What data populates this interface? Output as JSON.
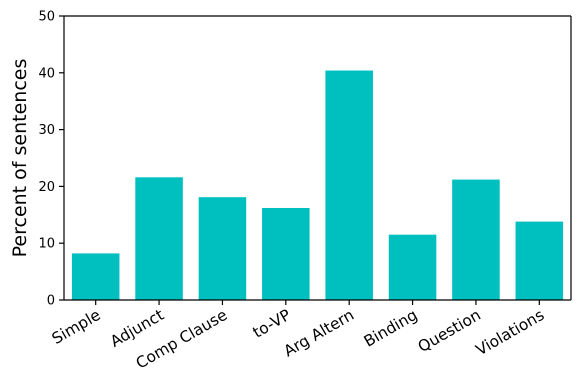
{
  "chart_data": {
    "type": "bar",
    "title": "",
    "xlabel": "",
    "ylabel": "Percent of sentences",
    "ylim": [
      0,
      50
    ],
    "yticks": [
      0,
      10,
      20,
      30,
      40,
      50
    ],
    "grid": false,
    "categories": [
      "Simple",
      "Adjunct",
      "Comp Clause",
      "to-VP",
      "Arg Altern",
      "Binding",
      "Question",
      "Violations"
    ],
    "values": [
      8.2,
      21.6,
      18.1,
      16.2,
      40.4,
      11.5,
      21.2,
      13.8
    ],
    "bar_color": "#00BFBF"
  }
}
